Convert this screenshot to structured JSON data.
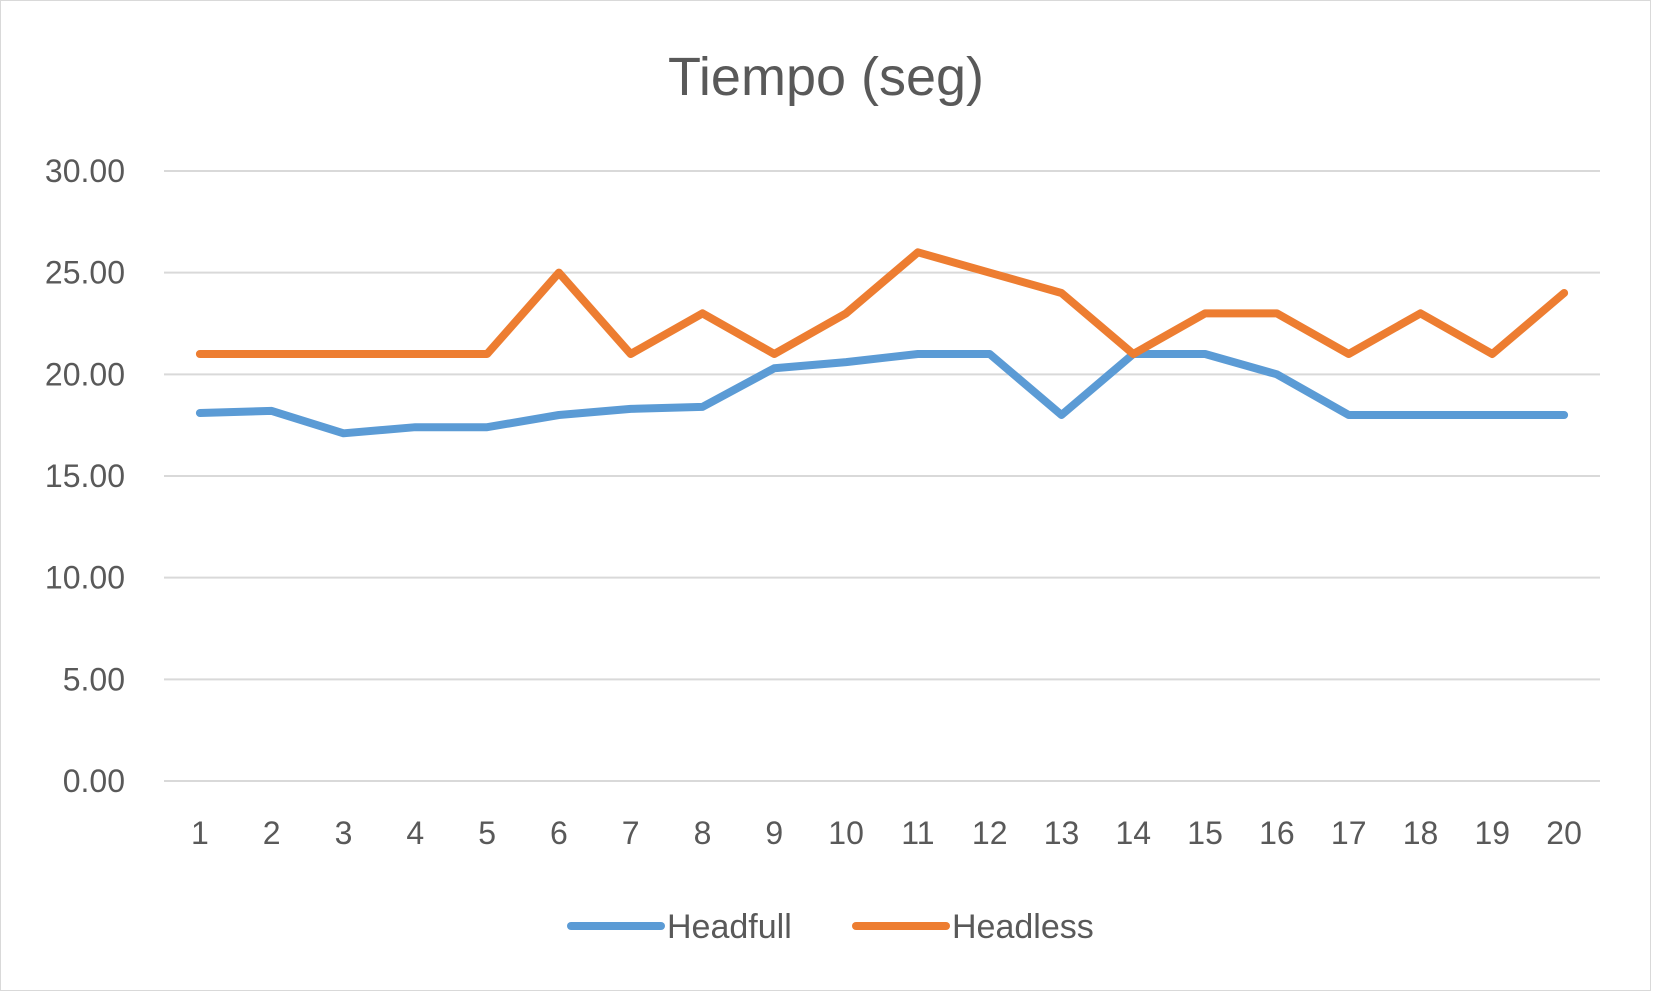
{
  "chart_data": {
    "type": "line",
    "title": "Tiempo (seg)",
    "xlabel": "",
    "ylabel": "",
    "categories": [
      "1",
      "2",
      "3",
      "4",
      "5",
      "6",
      "7",
      "8",
      "9",
      "10",
      "11",
      "12",
      "13",
      "14",
      "15",
      "16",
      "17",
      "18",
      "19",
      "20"
    ],
    "ylim": [
      0,
      30
    ],
    "yticks": [
      "0.00",
      "5.00",
      "10.00",
      "15.00",
      "20.00",
      "25.00",
      "30.00"
    ],
    "grid": true,
    "legend_position": "bottom",
    "series": [
      {
        "name": "Headfull",
        "color": "#5b9bd5",
        "values": [
          18.1,
          18.2,
          17.1,
          17.4,
          17.4,
          18.0,
          18.3,
          18.4,
          20.3,
          20.6,
          21.0,
          21.0,
          18.0,
          21.0,
          21.0,
          20.0,
          18.0,
          18.0,
          18.0,
          18.0
        ]
      },
      {
        "name": "Headless",
        "color": "#ed7d31",
        "values": [
          21.0,
          21.0,
          21.0,
          21.0,
          21.0,
          25.0,
          21.0,
          23.0,
          21.0,
          23.0,
          26.0,
          25.0,
          24.0,
          21.0,
          23.0,
          23.0,
          21.0,
          23.0,
          21.0,
          24.0
        ]
      }
    ]
  }
}
